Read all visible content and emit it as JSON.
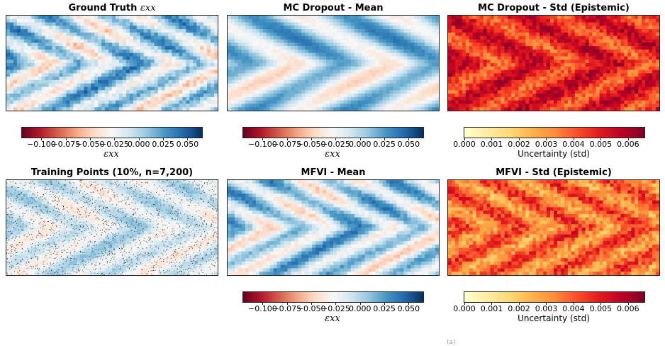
{
  "panels": [
    {
      "id": "gt",
      "title": "Ground Truth ",
      "title_sub": "εxx",
      "cmap": "RdBu",
      "style": "gt"
    },
    {
      "id": "mcmean",
      "title": "MC Dropout - Mean",
      "title_sub": "",
      "cmap": "RdBu",
      "style": "smooth"
    },
    {
      "id": "mcstd",
      "title": "MC Dropout - Std (Epistemic)",
      "title_sub": "",
      "cmap": "YlOrRd",
      "style": "std_dark"
    },
    {
      "id": "train",
      "title": "Training Points (10%, n=7,200)",
      "title_sub": "",
      "cmap": "RdBu",
      "style": "train"
    },
    {
      "id": "mfmean",
      "title": "MFVI - Mean",
      "title_sub": "",
      "cmap": "RdBu",
      "style": "mfvi"
    },
    {
      "id": "mfstd",
      "title": "MFVI - Std (Epistemic)",
      "title_sub": "",
      "cmap": "YlOrRd",
      "style": "std_light"
    }
  ],
  "colorbars": [
    {
      "id": "cb-gt",
      "cmap": "RdBu",
      "label": "εxx",
      "ticks": [
        "−0.100",
        "−0.075",
        "−0.050",
        "−0.025",
        "0.000",
        "0.025",
        "0.050"
      ],
      "tick_values": [
        -0.1,
        -0.075,
        -0.05,
        -0.025,
        0.0,
        0.025,
        0.05
      ],
      "range": [
        -0.12,
        0.065
      ]
    },
    {
      "id": "cb-mcmean",
      "cmap": "RdBu",
      "label": "εxx",
      "ticks": [
        "−0.100",
        "−0.075",
        "−0.050",
        "−0.025",
        "0.000",
        "0.025",
        "0.050"
      ],
      "tick_values": [
        -0.1,
        -0.075,
        -0.05,
        -0.025,
        0.0,
        0.025,
        0.05
      ],
      "range": [
        -0.12,
        0.065
      ]
    },
    {
      "id": "cb-mcstd",
      "cmap": "YlOrRd",
      "label": "Uncertainty (std)",
      "ticks": [
        "0.000",
        "0.001",
        "0.002",
        "0.003",
        "0.004",
        "0.005",
        "0.006"
      ],
      "tick_values": [
        0.0,
        0.001,
        0.002,
        0.003,
        0.004,
        0.005,
        0.006
      ],
      "range": [
        0.0,
        0.0066
      ]
    },
    {
      "id": "cb-mfmean",
      "cmap": "RdBu",
      "label": "εxx",
      "ticks": [
        "−0.100",
        "−0.075",
        "−0.050",
        "−0.025",
        "0.000",
        "0.025",
        "0.050"
      ],
      "tick_values": [
        -0.1,
        -0.075,
        -0.05,
        -0.025,
        0.0,
        0.025,
        0.05
      ],
      "range": [
        -0.12,
        0.065
      ]
    },
    {
      "id": "cb-mfstd",
      "cmap": "YlOrRd",
      "label": "Uncertainty (std)",
      "ticks": [
        "0.000",
        "0.001",
        "0.002",
        "0.003",
        "0.004",
        "0.005",
        "0.006"
      ],
      "tick_values": [
        0.0,
        0.001,
        0.002,
        0.003,
        0.004,
        0.005,
        0.006
      ],
      "range": [
        0.0,
        0.0066
      ]
    }
  ],
  "caption": "(a)",
  "chart_data": {
    "type": "heatmap",
    "panels": [
      "Ground Truth εxx",
      "MC Dropout - Mean",
      "MC Dropout - Std (Epistemic)",
      "Training Points (10%, n=7,200)",
      "MFVI - Mean",
      "MFVI - Std (Epistemic)"
    ],
    "strain_colorbar": {
      "cmap": "RdBu",
      "label": "εxx",
      "range": [
        -0.12,
        0.065
      ],
      "ticks": [
        -0.1,
        -0.075,
        -0.05,
        -0.025,
        0.0,
        0.025,
        0.05
      ]
    },
    "uncertainty_colorbar": {
      "cmap": "YlOrRd",
      "label": "Uncertainty (std)",
      "range": [
        0.0,
        0.0066
      ],
      "ticks": [
        0.0,
        0.001,
        0.002,
        0.003,
        0.004,
        0.005,
        0.006
      ]
    },
    "training_points": {
      "fraction": 0.1,
      "n": 7200
    }
  }
}
